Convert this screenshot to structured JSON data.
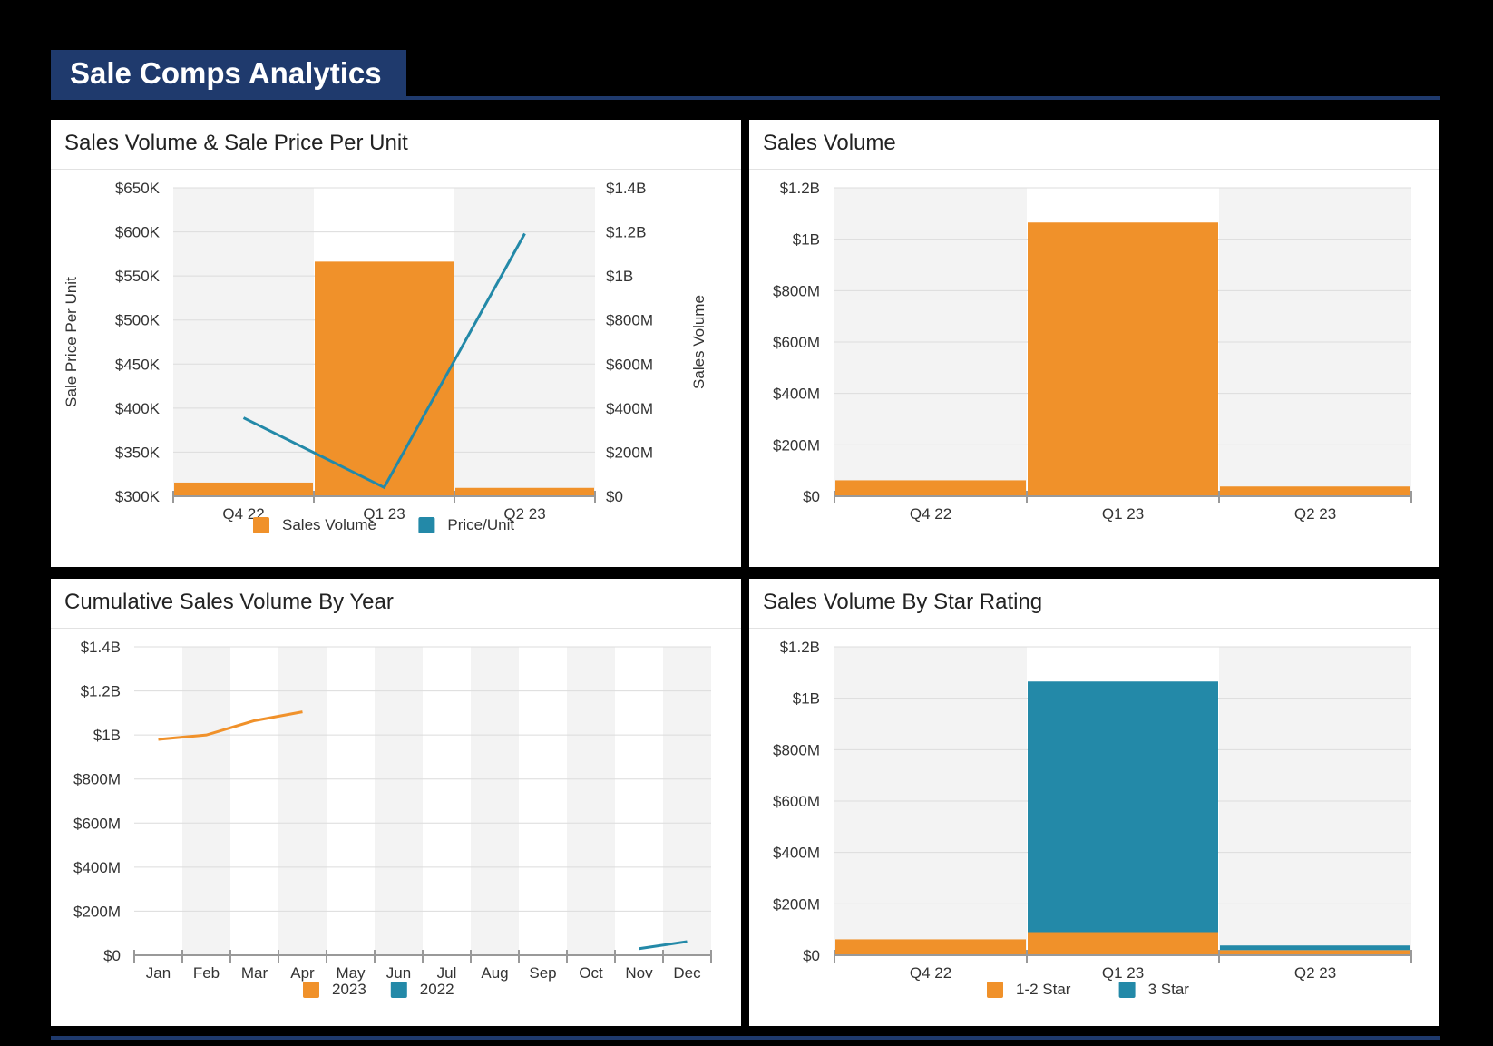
{
  "page": {
    "title": "Sale Comps Analytics"
  },
  "colors": {
    "orange": "#f0912a",
    "teal": "#2389a8",
    "navy": "#1f3a6d",
    "band": "#f3f3f3"
  },
  "panels": {
    "p1": {
      "title": "Sales Volume & Sale Price Per Unit"
    },
    "p2": {
      "title": "Sales Volume"
    },
    "p3": {
      "title": "Cumulative Sales Volume By Year"
    },
    "p4": {
      "title": "Sales Volume By Star Rating"
    }
  },
  "chart_data": [
    {
      "id": "combo",
      "type": "bar",
      "title": "Sales Volume & Sale Price Per Unit",
      "categories": [
        "Q4 22",
        "Q1 23",
        "Q2 23"
      ],
      "ylabel_left": "Sale Price Per Unit",
      "ylabel_right": "Sales Volume",
      "yticks_left": [
        "$650K",
        "$600K",
        "$550K",
        "$500K",
        "$450K",
        "$400K",
        "$350K",
        "$300K"
      ],
      "ylim_left": [
        300000,
        650000
      ],
      "yticks_right": [
        "$1.4B",
        "$1.2B",
        "$1B",
        "$800M",
        "$600M",
        "$400M",
        "$200M",
        "$0"
      ],
      "ylim_right": [
        0,
        1400000000
      ],
      "series": [
        {
          "name": "Sales Volume",
          "kind": "bar",
          "axis": "right",
          "values": [
            62000000,
            1065000000,
            38000000
          ]
        },
        {
          "name": "Price/Unit",
          "kind": "line",
          "axis": "left",
          "values": [
            389000,
            310000,
            598000
          ]
        }
      ],
      "legend": [
        "Sales Volume",
        "Price/Unit"
      ]
    },
    {
      "id": "volume",
      "type": "bar",
      "title": "Sales Volume",
      "categories": [
        "Q4 22",
        "Q1 23",
        "Q2 23"
      ],
      "yticks": [
        "$1.2B",
        "$1B",
        "$800M",
        "$600M",
        "$400M",
        "$200M",
        "$0"
      ],
      "ylim": [
        0,
        1200000000
      ],
      "series": [
        {
          "name": "Sales Volume",
          "values": [
            62000000,
            1065000000,
            38000000
          ]
        }
      ]
    },
    {
      "id": "cumulative",
      "type": "line",
      "title": "Cumulative Sales Volume By Year",
      "categories": [
        "Jan",
        "Feb",
        "Mar",
        "Apr",
        "May",
        "Jun",
        "Jul",
        "Aug",
        "Sep",
        "Oct",
        "Nov",
        "Dec"
      ],
      "yticks": [
        "$1.4B",
        "$1.2B",
        "$1B",
        "$800M",
        "$600M",
        "$400M",
        "$200M",
        "$0"
      ],
      "ylim": [
        0,
        1400000000
      ],
      "series": [
        {
          "name": "2023",
          "values": [
            980000000,
            1000000000,
            1065000000,
            1105000000,
            null,
            null,
            null,
            null,
            null,
            null,
            null,
            null
          ]
        },
        {
          "name": "2022",
          "values": [
            null,
            null,
            null,
            null,
            null,
            null,
            null,
            null,
            null,
            null,
            30000000,
            62000000
          ]
        }
      ],
      "legend": [
        "2023",
        "2022"
      ]
    },
    {
      "id": "stars",
      "type": "bar",
      "stacked": true,
      "title": "Sales Volume By Star Rating",
      "categories": [
        "Q4 22",
        "Q1 23",
        "Q2 23"
      ],
      "yticks": [
        "$1.2B",
        "$1B",
        "$800M",
        "$600M",
        "$400M",
        "$200M",
        "$0"
      ],
      "ylim": [
        0,
        1200000000
      ],
      "series": [
        {
          "name": "1-2 Star",
          "values": [
            62000000,
            90000000,
            20000000
          ]
        },
        {
          "name": "3 Star",
          "values": [
            0,
            975000000,
            18000000
          ]
        }
      ],
      "legend": [
        "1-2 Star",
        "3 Star"
      ]
    }
  ]
}
